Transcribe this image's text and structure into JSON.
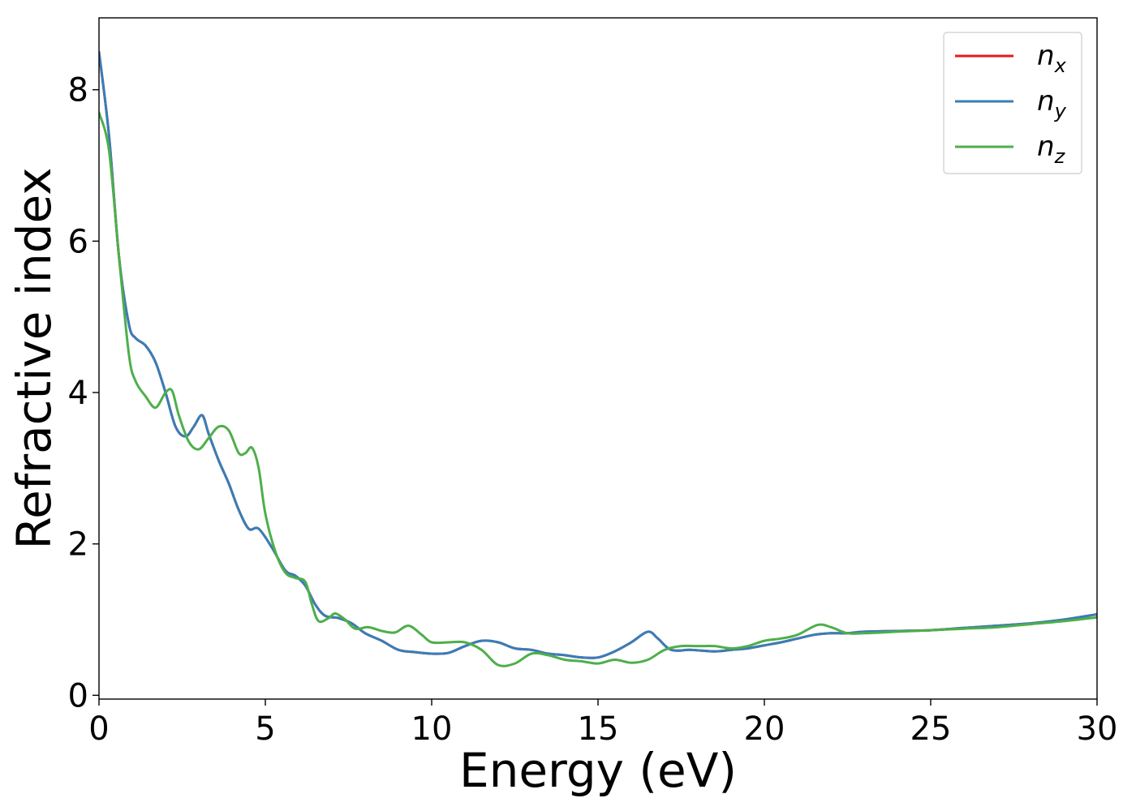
{
  "chart_data": {
    "type": "line",
    "title": "",
    "xlabel": "Energy (eV)",
    "ylabel": "Refractive index",
    "xlim": [
      0,
      30
    ],
    "ylim": [
      -0.05,
      8.95
    ],
    "xticks": [
      0,
      5,
      10,
      15,
      20,
      25,
      30
    ],
    "yticks": [
      0,
      2,
      4,
      6,
      8
    ],
    "grid": false,
    "legend_position": "top-right",
    "series": [
      {
        "name": "n",
        "subscript": "x",
        "color": "#e41a1c",
        "x": [
          0,
          0.3,
          0.6,
          0.9,
          1.1,
          1.4,
          1.7,
          2.0,
          2.3,
          2.6,
          2.85,
          3.1,
          3.3,
          3.6,
          3.9,
          4.2,
          4.5,
          4.8,
          5.2,
          5.6,
          5.9,
          6.2,
          6.5,
          6.8,
          7.2,
          7.6,
          8.0,
          8.5,
          9.0,
          9.5,
          10.0,
          10.5,
          11.0,
          11.5,
          12.0,
          12.5,
          13.0,
          13.5,
          14.0,
          14.5,
          15.0,
          15.5,
          16.0,
          16.5,
          16.8,
          17.2,
          17.8,
          18.5,
          19.0,
          19.5,
          20.0,
          20.5,
          21.0,
          21.5,
          22.0,
          22.5,
          23.0,
          24.0,
          25.0,
          26.0,
          27.0,
          28.0,
          29.0,
          30.0
        ],
        "values": [
          8.5,
          7.4,
          5.8,
          4.9,
          4.72,
          4.62,
          4.4,
          4.0,
          3.55,
          3.42,
          3.55,
          3.7,
          3.45,
          3.1,
          2.8,
          2.45,
          2.2,
          2.2,
          1.95,
          1.65,
          1.58,
          1.45,
          1.2,
          1.05,
          1.02,
          0.95,
          0.82,
          0.72,
          0.6,
          0.57,
          0.55,
          0.56,
          0.65,
          0.72,
          0.7,
          0.62,
          0.6,
          0.55,
          0.53,
          0.5,
          0.5,
          0.58,
          0.7,
          0.84,
          0.75,
          0.6,
          0.6,
          0.58,
          0.6,
          0.62,
          0.66,
          0.7,
          0.75,
          0.8,
          0.82,
          0.82,
          0.84,
          0.85,
          0.86,
          0.89,
          0.92,
          0.95,
          1.0,
          1.07
        ]
      },
      {
        "name": "n",
        "subscript": "y",
        "color": "#377eb8",
        "x": [
          0,
          0.3,
          0.6,
          0.9,
          1.1,
          1.4,
          1.7,
          2.0,
          2.3,
          2.6,
          2.85,
          3.1,
          3.3,
          3.6,
          3.9,
          4.2,
          4.5,
          4.8,
          5.2,
          5.6,
          5.9,
          6.2,
          6.5,
          6.8,
          7.2,
          7.6,
          8.0,
          8.5,
          9.0,
          9.5,
          10.0,
          10.5,
          11.0,
          11.5,
          12.0,
          12.5,
          13.0,
          13.5,
          14.0,
          14.5,
          15.0,
          15.5,
          16.0,
          16.5,
          16.8,
          17.2,
          17.8,
          18.5,
          19.0,
          19.5,
          20.0,
          20.5,
          21.0,
          21.5,
          22.0,
          22.5,
          23.0,
          24.0,
          25.0,
          26.0,
          27.0,
          28.0,
          29.0,
          30.0
        ],
        "values": [
          8.5,
          7.4,
          5.8,
          4.9,
          4.72,
          4.62,
          4.4,
          4.0,
          3.55,
          3.42,
          3.55,
          3.7,
          3.45,
          3.1,
          2.8,
          2.45,
          2.2,
          2.2,
          1.95,
          1.65,
          1.58,
          1.45,
          1.2,
          1.05,
          1.02,
          0.95,
          0.82,
          0.72,
          0.6,
          0.57,
          0.55,
          0.56,
          0.65,
          0.72,
          0.7,
          0.62,
          0.6,
          0.55,
          0.53,
          0.5,
          0.5,
          0.58,
          0.7,
          0.84,
          0.75,
          0.6,
          0.6,
          0.58,
          0.6,
          0.62,
          0.66,
          0.7,
          0.75,
          0.8,
          0.82,
          0.82,
          0.84,
          0.85,
          0.86,
          0.89,
          0.92,
          0.95,
          1.0,
          1.07
        ]
      },
      {
        "name": "n",
        "subscript": "z",
        "color": "#4daf4a",
        "x": [
          0,
          0.3,
          0.6,
          0.9,
          1.1,
          1.4,
          1.7,
          2.0,
          2.2,
          2.4,
          2.7,
          3.0,
          3.3,
          3.6,
          3.9,
          4.2,
          4.4,
          4.6,
          4.8,
          5.0,
          5.3,
          5.6,
          5.9,
          6.2,
          6.4,
          6.6,
          6.9,
          7.1,
          7.4,
          7.7,
          8.1,
          8.5,
          8.9,
          9.3,
          9.7,
          10.0,
          10.5,
          11.0,
          11.5,
          12.0,
          12.5,
          13.0,
          13.5,
          14.0,
          14.5,
          15.0,
          15.5,
          16.0,
          16.5,
          17.0,
          17.5,
          18.0,
          18.5,
          19.0,
          19.5,
          20.0,
          20.5,
          21.0,
          21.6,
          22.0,
          22.5,
          23.0,
          24.0,
          25.0,
          26.0,
          27.0,
          28.0,
          29.0,
          30.0
        ],
        "values": [
          7.7,
          7.2,
          5.8,
          4.5,
          4.15,
          3.95,
          3.8,
          4.0,
          4.02,
          3.7,
          3.35,
          3.25,
          3.4,
          3.55,
          3.5,
          3.2,
          3.2,
          3.27,
          3.0,
          2.4,
          1.9,
          1.62,
          1.55,
          1.5,
          1.2,
          0.98,
          1.02,
          1.08,
          1.0,
          0.88,
          0.9,
          0.85,
          0.83,
          0.92,
          0.8,
          0.7,
          0.7,
          0.7,
          0.6,
          0.4,
          0.42,
          0.55,
          0.53,
          0.47,
          0.45,
          0.42,
          0.47,
          0.43,
          0.47,
          0.6,
          0.65,
          0.65,
          0.65,
          0.62,
          0.65,
          0.72,
          0.75,
          0.8,
          0.93,
          0.9,
          0.82,
          0.82,
          0.84,
          0.86,
          0.88,
          0.9,
          0.94,
          0.98,
          1.03
        ]
      }
    ]
  }
}
